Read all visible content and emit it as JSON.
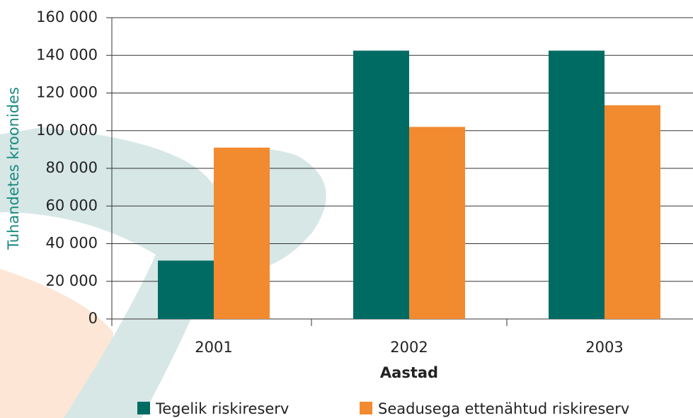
{
  "chart_data": {
    "type": "bar",
    "x_label": "Aastad",
    "y_label": "Tuhandetes kroonides",
    "categories": [
      "2001",
      "2002",
      "2003"
    ],
    "series": [
      {
        "name": "Tegelik riskireserv",
        "color": "#006b62",
        "values": [
          31000,
          142500,
          142500
        ]
      },
      {
        "name": "Seadusega ettenähtud riskireserv",
        "color": "#f28a30",
        "values": [
          91000,
          102000,
          113500
        ]
      }
    ],
    "ylim": [
      0,
      160000
    ],
    "yticks": [
      0,
      {
        "value": 20000,
        "label": "20 000"
      },
      {
        "value": 40000,
        "label": "40 000"
      },
      {
        "value": 60000,
        "label": "60 000"
      },
      {
        "value": 80000,
        "label": "80 000"
      },
      {
        "value": 100000,
        "label": "100 000"
      },
      {
        "value": 120000,
        "label": "120 000"
      },
      {
        "value": 140000,
        "label": "140 000"
      },
      {
        "value": 160000,
        "label": "160 000"
      }
    ],
    "grid": true
  }
}
